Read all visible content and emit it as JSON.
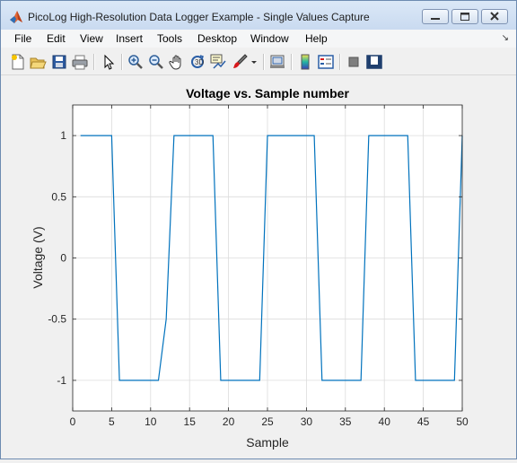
{
  "window": {
    "title": "PicoLog High-Resolution Data Logger Example - Single Values Capture",
    "controls": [
      "minimize",
      "maximize",
      "close"
    ]
  },
  "menu": {
    "items": [
      "File",
      "Edit",
      "View",
      "Insert",
      "Tools",
      "Desktop",
      "Window",
      "Help"
    ]
  },
  "toolbar": {
    "buttons": [
      "new-figure-icon",
      "open-file-icon",
      "save-icon",
      "print-icon",
      "pointer-icon",
      "zoom-in-icon",
      "zoom-out-icon",
      "pan-icon",
      "rotate-3d-icon",
      "data-cursor-icon",
      "brush-icon",
      "print-preview-icon",
      "colorbar-icon",
      "legend-icon",
      "hide-plot-tools-icon",
      "show-plot-tools-icon"
    ]
  },
  "colors": {
    "line": "#0072bd",
    "axes_bg": "#ffffff",
    "grid": "#dcdcdc",
    "figure_bg": "#f0f0f0"
  },
  "chart_data": {
    "type": "line",
    "title": "Voltage vs. Sample number",
    "xlabel": "Sample",
    "ylabel": "Voltage (V)",
    "xlim": [
      0,
      50
    ],
    "ylim": [
      -1.25,
      1.25
    ],
    "xticks": [
      0,
      5,
      10,
      15,
      20,
      25,
      30,
      35,
      40,
      45,
      50
    ],
    "yticks": [
      -1,
      -0.5,
      0,
      0.5,
      1
    ],
    "xtick_labels": [
      "0",
      "5",
      "10",
      "15",
      "20",
      "25",
      "30",
      "35",
      "40",
      "45",
      "50"
    ],
    "ytick_labels": [
      "-1",
      "-0.5",
      "0",
      "0.5",
      "1"
    ],
    "grid": true,
    "series": [
      {
        "x": [
          1,
          2,
          3,
          4,
          5,
          6,
          7,
          8,
          9,
          10,
          11,
          12,
          13,
          14,
          15,
          16,
          17,
          18,
          19,
          20,
          21,
          22,
          23,
          24,
          25,
          26,
          27,
          28,
          29,
          30,
          31,
          32,
          33,
          34,
          35,
          36,
          37,
          38,
          39,
          40,
          41,
          42,
          43,
          44,
          45,
          46,
          47,
          48,
          49,
          50
        ],
        "values": [
          1,
          1,
          1,
          1,
          1,
          -1,
          -1,
          -1,
          -1,
          -1,
          -1,
          -0.5,
          1,
          1,
          1,
          1,
          1,
          1,
          -1,
          -1,
          -1,
          -1,
          -1,
          -1,
          1,
          1,
          1,
          1,
          1,
          1,
          1,
          -1,
          -1,
          -1,
          -1,
          -1,
          -1,
          1,
          1,
          1,
          1,
          1,
          1,
          -1,
          -1,
          -1,
          -1,
          -1,
          -1,
          1
        ]
      }
    ]
  }
}
